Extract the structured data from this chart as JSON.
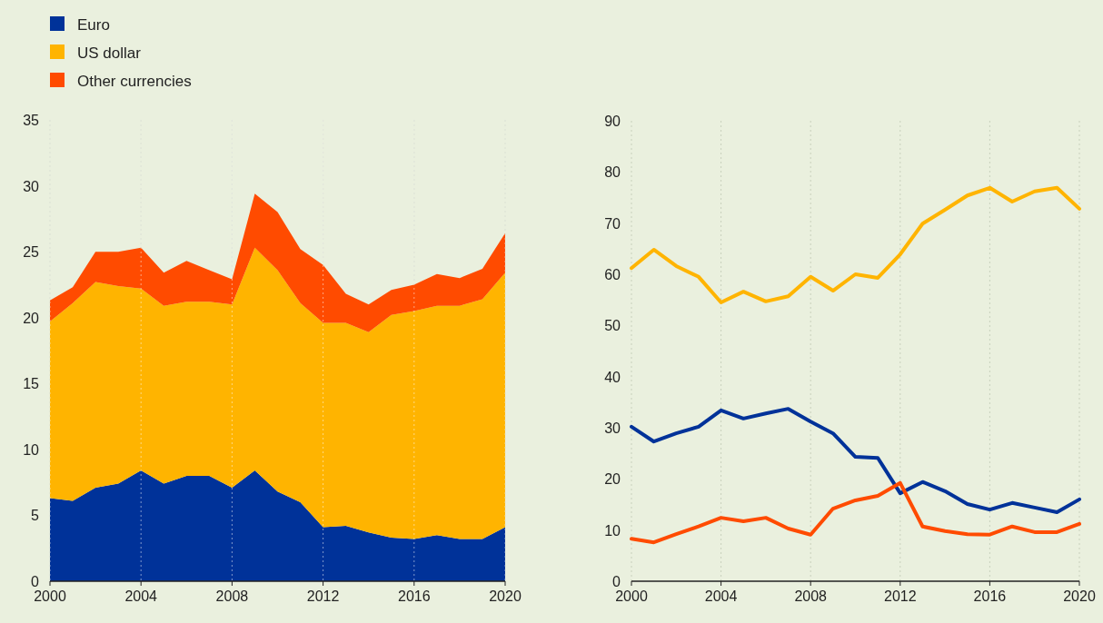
{
  "chart_data": [
    {
      "type": "area",
      "stacked": true,
      "x": [
        2000,
        2001,
        2002,
        2003,
        2004,
        2005,
        2006,
        2007,
        2008,
        2009,
        2010,
        2011,
        2012,
        2013,
        2014,
        2015,
        2016,
        2017,
        2018,
        2019,
        2020
      ],
      "series": [
        {
          "name": "Euro",
          "color": "#003299",
          "values": [
            6.3,
            6.1,
            7.1,
            7.4,
            8.4,
            7.4,
            8.0,
            8.0,
            7.1,
            8.4,
            6.8,
            6.0,
            4.1,
            4.2,
            3.7,
            3.3,
            3.2,
            3.5,
            3.2,
            3.2,
            4.1
          ]
        },
        {
          "name": "US dollar",
          "color": "#ffb400",
          "values": [
            13.4,
            15.0,
            15.6,
            15.0,
            13.8,
            13.5,
            13.2,
            13.2,
            13.9,
            16.9,
            16.8,
            15.1,
            15.5,
            15.4,
            15.2,
            16.9,
            17.3,
            17.4,
            17.7,
            18.2,
            19.3
          ]
        },
        {
          "name": "Other currencies",
          "color": "#ff4b00",
          "values": [
            1.6,
            1.2,
            2.3,
            2.6,
            3.1,
            2.5,
            3.1,
            2.4,
            1.9,
            4.1,
            4.4,
            4.1,
            4.4,
            2.2,
            2.1,
            1.9,
            2.0,
            2.4,
            2.1,
            2.3,
            3.0
          ]
        }
      ],
      "xlim": [
        2000,
        2020
      ],
      "xticks": [
        2000,
        2004,
        2008,
        2012,
        2016,
        2020
      ],
      "ylim": [
        0,
        35
      ],
      "yticks": [
        0,
        5,
        10,
        15,
        20,
        25,
        30,
        35
      ],
      "grid": "x",
      "legend": "top left"
    },
    {
      "type": "line",
      "x": [
        2000,
        2001,
        2002,
        2003,
        2004,
        2005,
        2006,
        2007,
        2008,
        2009,
        2010,
        2011,
        2012,
        2013,
        2014,
        2015,
        2016,
        2017,
        2018,
        2019,
        2020
      ],
      "series": [
        {
          "color": "#ffb400",
          "values": [
            61.2,
            64.8,
            61.6,
            59.5,
            54.5,
            56.6,
            54.7,
            55.7,
            59.5,
            56.8,
            60.0,
            59.3,
            63.9,
            69.9,
            72.6,
            75.4,
            76.9,
            74.2,
            76.2,
            76.9,
            72.8
          ]
        },
        {
          "color": "#003299",
          "values": [
            30.2,
            27.3,
            28.9,
            30.2,
            33.4,
            31.8,
            32.8,
            33.7,
            31.2,
            28.9,
            24.3,
            24.1,
            17.2,
            19.4,
            17.6,
            15.1,
            14.0,
            15.3,
            14.4,
            13.5,
            16.0
          ]
        },
        {
          "color": "#ff4b00",
          "values": [
            8.3,
            7.6,
            9.2,
            10.7,
            12.4,
            11.7,
            12.4,
            10.3,
            9.1,
            14.2,
            15.8,
            16.7,
            19.2,
            10.7,
            9.8,
            9.2,
            9.1,
            10.7,
            9.6,
            9.6,
            11.2
          ]
        }
      ],
      "xlim": [
        2000,
        2020
      ],
      "xticks": [
        2000,
        2004,
        2008,
        2012,
        2016,
        2020
      ],
      "ylim": [
        0,
        90
      ],
      "yticks": [
        0,
        10,
        20,
        30,
        40,
        50,
        60,
        70,
        80,
        90
      ],
      "grid": "x"
    }
  ]
}
